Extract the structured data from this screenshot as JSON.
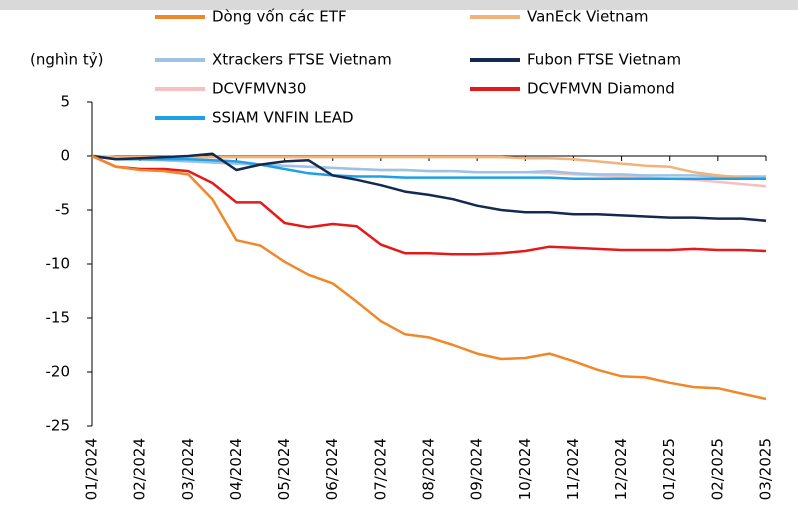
{
  "chart_data": {
    "type": "line",
    "y_axis_label": "(nghìn tỷ)",
    "categories": [
      "01/2024",
      null,
      "02/2024",
      null,
      "03/2024",
      null,
      "04/2024",
      null,
      "05/2024",
      null,
      "06/2024",
      null,
      "07/2024",
      null,
      "08/2024",
      null,
      "09/2024",
      null,
      "10/2024",
      null,
      "11/2024",
      null,
      "12/2024",
      null,
      "01/2025",
      null,
      "02/2025",
      null,
      "03/2025"
    ],
    "ylim": [
      -25,
      5
    ],
    "yticks": [
      5,
      0,
      -5,
      -10,
      -15,
      -20,
      -25
    ],
    "negative_tick_color": "#e00000",
    "series": [
      {
        "name": "Dòng vốn các ETF",
        "color": "#f0882a",
        "values": [
          0,
          -1.0,
          -1.3,
          -1.4,
          -1.7,
          -4.0,
          -7.8,
          -8.3,
          -9.8,
          -11.0,
          -11.8,
          -13.5,
          -15.3,
          -16.5,
          -16.8,
          -17.5,
          -18.3,
          -18.8,
          -18.7,
          -18.3,
          -19.0,
          -19.8,
          -20.4,
          -20.5,
          -21.0,
          -21.4,
          -21.5,
          -22.0,
          -22.5
        ]
      },
      {
        "name": "VanEck Vietnam",
        "color": "#f2b27a",
        "values": [
          0,
          -0.1,
          -0.1,
          -0.1,
          -0.1,
          -0.1,
          -0.1,
          -0.1,
          -0.1,
          -0.1,
          -0.1,
          -0.1,
          -0.1,
          -0.1,
          -0.1,
          -0.1,
          -0.1,
          -0.1,
          -0.2,
          -0.2,
          -0.3,
          -0.5,
          -0.7,
          -0.9,
          -1.0,
          -1.5,
          -1.8,
          -2.0,
          -2.1
        ]
      },
      {
        "name": "Xtrackers FTSE Vietnam",
        "color": "#9cc3e6",
        "values": [
          0,
          -0.2,
          -0.3,
          -0.4,
          -0.5,
          -0.6,
          -0.7,
          -0.8,
          -0.9,
          -1.0,
          -1.1,
          -1.2,
          -1.3,
          -1.3,
          -1.4,
          -1.4,
          -1.5,
          -1.5,
          -1.5,
          -1.4,
          -1.6,
          -1.7,
          -1.7,
          -1.8,
          -1.8,
          -1.8,
          -1.9,
          -1.9,
          -1.9
        ]
      },
      {
        "name": "Fubon FTSE Vietnam",
        "color": "#14294f",
        "values": [
          0,
          -0.3,
          -0.2,
          -0.1,
          0,
          0.2,
          -1.3,
          -0.8,
          -0.5,
          -0.4,
          -1.8,
          -2.2,
          -2.7,
          -3.3,
          -3.6,
          -4.0,
          -4.6,
          -5.0,
          -5.2,
          -5.2,
          -5.4,
          -5.4,
          -5.5,
          -5.6,
          -5.7,
          -5.7,
          -5.8,
          -5.8,
          -6.0
        ]
      },
      {
        "name": "DCVFMVN30",
        "color": "#f7c0c0",
        "values": [
          0,
          -0.2,
          -0.3,
          -0.4,
          -0.5,
          -0.6,
          -0.7,
          -0.8,
          -0.9,
          -1.0,
          -1.1,
          -1.2,
          -1.3,
          -1.3,
          -1.4,
          -1.4,
          -1.5,
          -1.5,
          -1.5,
          -1.6,
          -1.7,
          -1.8,
          -1.9,
          -2.0,
          -2.1,
          -2.2,
          -2.4,
          -2.6,
          -2.8
        ]
      },
      {
        "name": "DCVFMVN Diamond",
        "color": "#e41a1a",
        "values": [
          0,
          -1.0,
          -1.2,
          -1.2,
          -1.4,
          -2.5,
          -4.3,
          -4.3,
          -6.2,
          -6.6,
          -6.3,
          -6.5,
          -8.2,
          -9.0,
          -9.0,
          -9.1,
          -9.1,
          -9.0,
          -8.8,
          -8.4,
          -8.5,
          -8.6,
          -8.7,
          -8.7,
          -8.7,
          -8.6,
          -8.7,
          -8.7,
          -8.8
        ]
      },
      {
        "name": "SSIAM VNFIN LEAD",
        "color": "#1ea0e6",
        "values": [
          0,
          -0.3,
          -0.3,
          -0.3,
          -0.3,
          -0.4,
          -0.5,
          -0.8,
          -1.2,
          -1.6,
          -1.8,
          -1.9,
          -1.9,
          -2.0,
          -2.0,
          -2.0,
          -2.0,
          -2.0,
          -2.0,
          -2.0,
          -2.1,
          -2.1,
          -2.1,
          -2.1,
          -2.1,
          -2.1,
          -2.1,
          -2.1,
          -2.1
        ]
      }
    ]
  }
}
